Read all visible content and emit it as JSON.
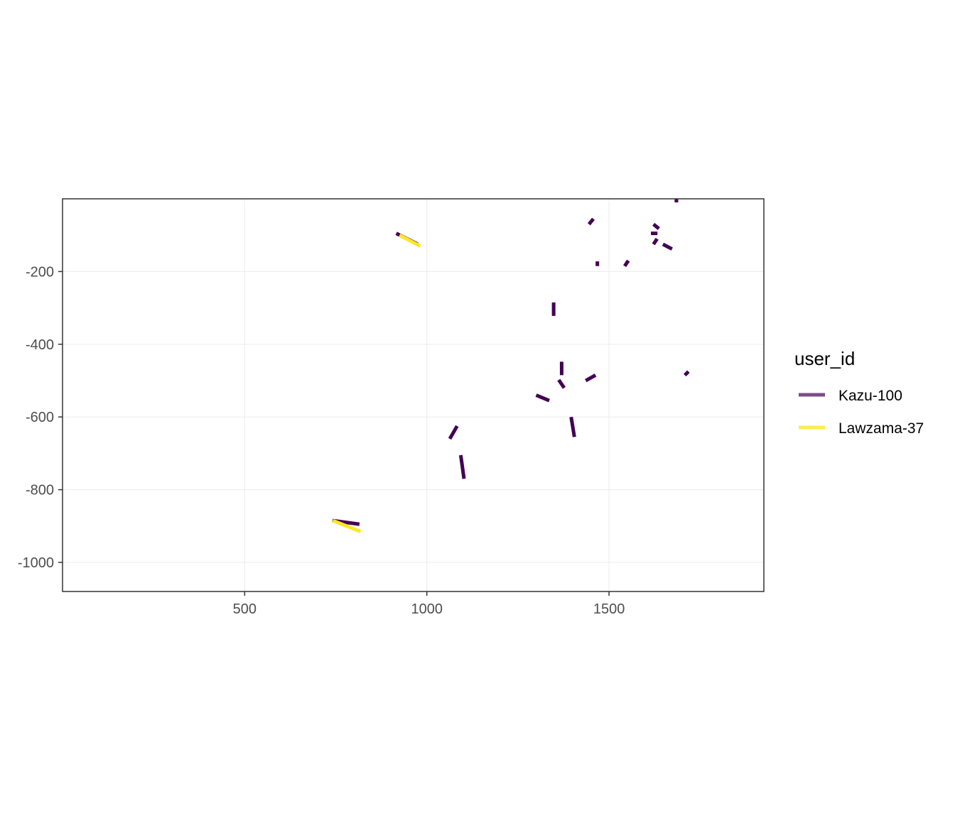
{
  "chart_data": {
    "type": "line",
    "xlim": [
      0,
      1925
    ],
    "ylim": [
      -1080,
      0
    ],
    "x_ticks": [
      500,
      1000,
      1500
    ],
    "y_ticks": [
      -200,
      -400,
      -600,
      -800,
      -1000
    ],
    "x_tick_labels": [
      "500",
      "1000",
      "1500"
    ],
    "y_tick_labels": [
      "-200",
      "-400",
      "-600",
      "-800",
      "-1000"
    ],
    "grid": true,
    "legend_position": "right",
    "legend": {
      "title": "user_id",
      "entries": [
        {
          "label": "Kazu-100",
          "color": "#440154"
        },
        {
          "label": "Lawzama-37",
          "color": "#FDE725"
        }
      ]
    },
    "series": [
      {
        "name": "Kazu-100",
        "color": "#440154",
        "segments": [
          [
            [
              916,
              -95
            ],
            [
              975,
              -125
            ]
          ],
          [
            [
              741,
              -885
            ],
            [
              815,
              -895
            ]
          ],
          [
            [
              1680,
              -5
            ],
            [
              1690,
              -5
            ]
          ],
          [
            [
              1445,
              -70
            ],
            [
              1457,
              -55
            ]
          ],
          [
            [
              1615,
              -95
            ],
            [
              1633,
              -95
            ]
          ],
          [
            [
              1622,
              -70
            ],
            [
              1637,
              -82
            ]
          ],
          [
            [
              1622,
              -125
            ],
            [
              1632,
              -110
            ]
          ],
          [
            [
              1648,
              -125
            ],
            [
              1673,
              -138
            ]
          ],
          [
            [
              1468,
              -172
            ],
            [
              1468,
              -185
            ]
          ],
          [
            [
              1543,
              -185
            ],
            [
              1553,
              -170
            ]
          ],
          [
            [
              1348,
              -285
            ],
            [
              1348,
              -322
            ]
          ],
          [
            [
              1370,
              -448
            ],
            [
              1370,
              -485
            ]
          ],
          [
            [
              1362,
              -498
            ],
            [
              1377,
              -520
            ]
          ],
          [
            [
              1436,
              -500
            ],
            [
              1463,
              -485
            ]
          ],
          [
            [
              1300,
              -540
            ],
            [
              1336,
              -555
            ]
          ],
          [
            [
              1708,
              -485
            ],
            [
              1718,
              -475
            ]
          ],
          [
            [
              1063,
              -660
            ],
            [
              1083,
              -625
            ]
          ],
          [
            [
              1396,
              -600
            ],
            [
              1405,
              -655
            ]
          ],
          [
            [
              1093,
              -705
            ],
            [
              1102,
              -770
            ]
          ]
        ]
      },
      {
        "name": "Lawzama-37",
        "color": "#FDE725",
        "segments": [
          [
            [
              925,
              -100
            ],
            [
              982,
              -130
            ]
          ],
          [
            [
              742,
              -885
            ],
            [
              818,
              -915
            ]
          ]
        ]
      }
    ]
  }
}
